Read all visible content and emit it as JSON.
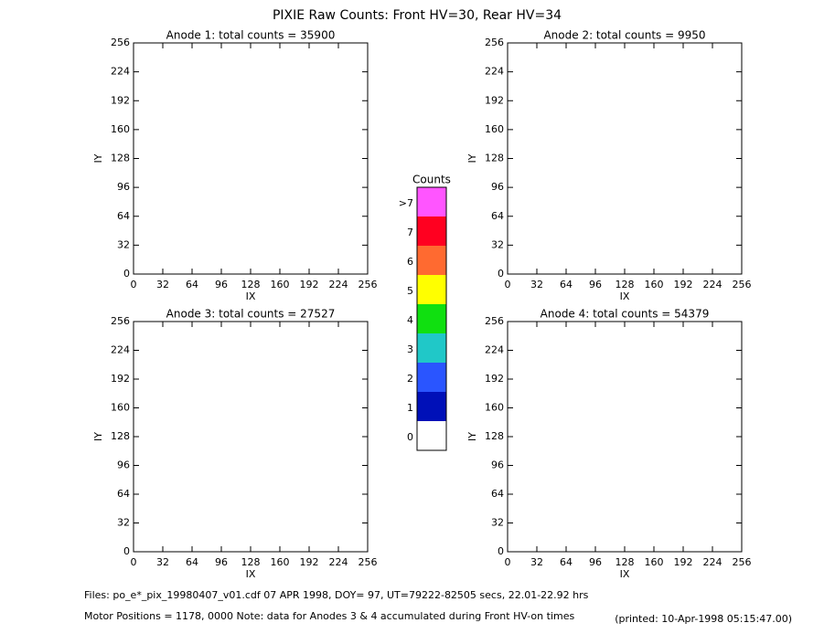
{
  "title": "PIXIE Raw Counts:  Front HV=30, Rear HV=34",
  "chart_data": [
    {
      "type": "heatmap",
      "title": "Anode 1: total counts = 35900",
      "x_label": "IX",
      "y_label": "IY",
      "xlim": [
        0,
        256
      ],
      "ylim": [
        0,
        256
      ],
      "xticks": [
        0,
        32,
        64,
        96,
        128,
        160,
        192,
        224,
        256
      ],
      "yticks": [
        0,
        32,
        64,
        96,
        128,
        160,
        192,
        224,
        256
      ]
    },
    {
      "type": "heatmap",
      "title": "Anode 2: total counts = 9950",
      "x_label": "IX",
      "y_label": "IY",
      "xlim": [
        0,
        256
      ],
      "ylim": [
        0,
        256
      ],
      "xticks": [
        0,
        32,
        64,
        96,
        128,
        160,
        192,
        224,
        256
      ],
      "yticks": [
        0,
        32,
        64,
        96,
        128,
        160,
        192,
        224,
        256
      ]
    },
    {
      "type": "heatmap",
      "title": "Anode 3: total counts = 27527",
      "x_label": "IX",
      "y_label": "IY",
      "xlim": [
        0,
        256
      ],
      "ylim": [
        0,
        256
      ],
      "xticks": [
        0,
        32,
        64,
        96,
        128,
        160,
        192,
        224,
        256
      ],
      "yticks": [
        0,
        32,
        64,
        96,
        128,
        160,
        192,
        224,
        256
      ]
    },
    {
      "type": "heatmap",
      "title": "Anode 4: total counts = 54379",
      "x_label": "IX",
      "y_label": "IY",
      "xlim": [
        0,
        256
      ],
      "ylim": [
        0,
        256
      ],
      "xticks": [
        0,
        32,
        64,
        96,
        128,
        160,
        192,
        224,
        256
      ],
      "yticks": [
        0,
        32,
        64,
        96,
        128,
        160,
        192,
        224,
        256
      ]
    }
  ],
  "colorbar": {
    "title": "Counts",
    "labels": [
      "0",
      "1",
      "2",
      "3",
      "4",
      "5",
      "6",
      "7",
      ">7"
    ],
    "colors": [
      "#ffffff",
      "#0010b8",
      "#2a55ff",
      "#20c8c8",
      "#10e010",
      "#ffff00",
      "#ff6a30",
      "#ff0020",
      "#ff55ff"
    ]
  },
  "footer": {
    "files": "Files: po_e*_pix_19980407_v01.cdf    07 APR 1998, DOY= 97, UT=79222-82505 secs, 22.01-22.92 hrs",
    "motor": "Motor Positions = 1178, 0000    Note: data for Anodes 3 & 4 accumulated during Front HV-on times",
    "printed": "(printed: 10-Apr-1998 05:15:47.00)"
  }
}
